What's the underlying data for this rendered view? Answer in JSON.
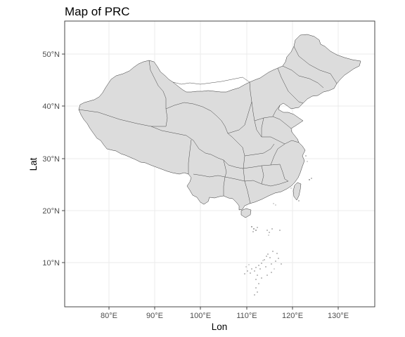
{
  "map": {
    "title": "Map of PRC",
    "xlabel": "Lon",
    "ylabel": "Lat",
    "x_ticks": [
      "80°E",
      "90°E",
      "100°E",
      "110°E",
      "120°E",
      "130°E"
    ],
    "y_ticks": [
      "50°N",
      "40°N",
      "30°N",
      "20°N",
      "10°N"
    ],
    "colors": {
      "land_fill": "#dcdcdc",
      "outline": "#333333",
      "grid": "#ebebeb",
      "background": "#ffffff"
    },
    "grid": true,
    "extent": {
      "lon": [
        70.6,
        138.1
      ],
      "lat": [
        1.6,
        56.2
      ]
    }
  }
}
